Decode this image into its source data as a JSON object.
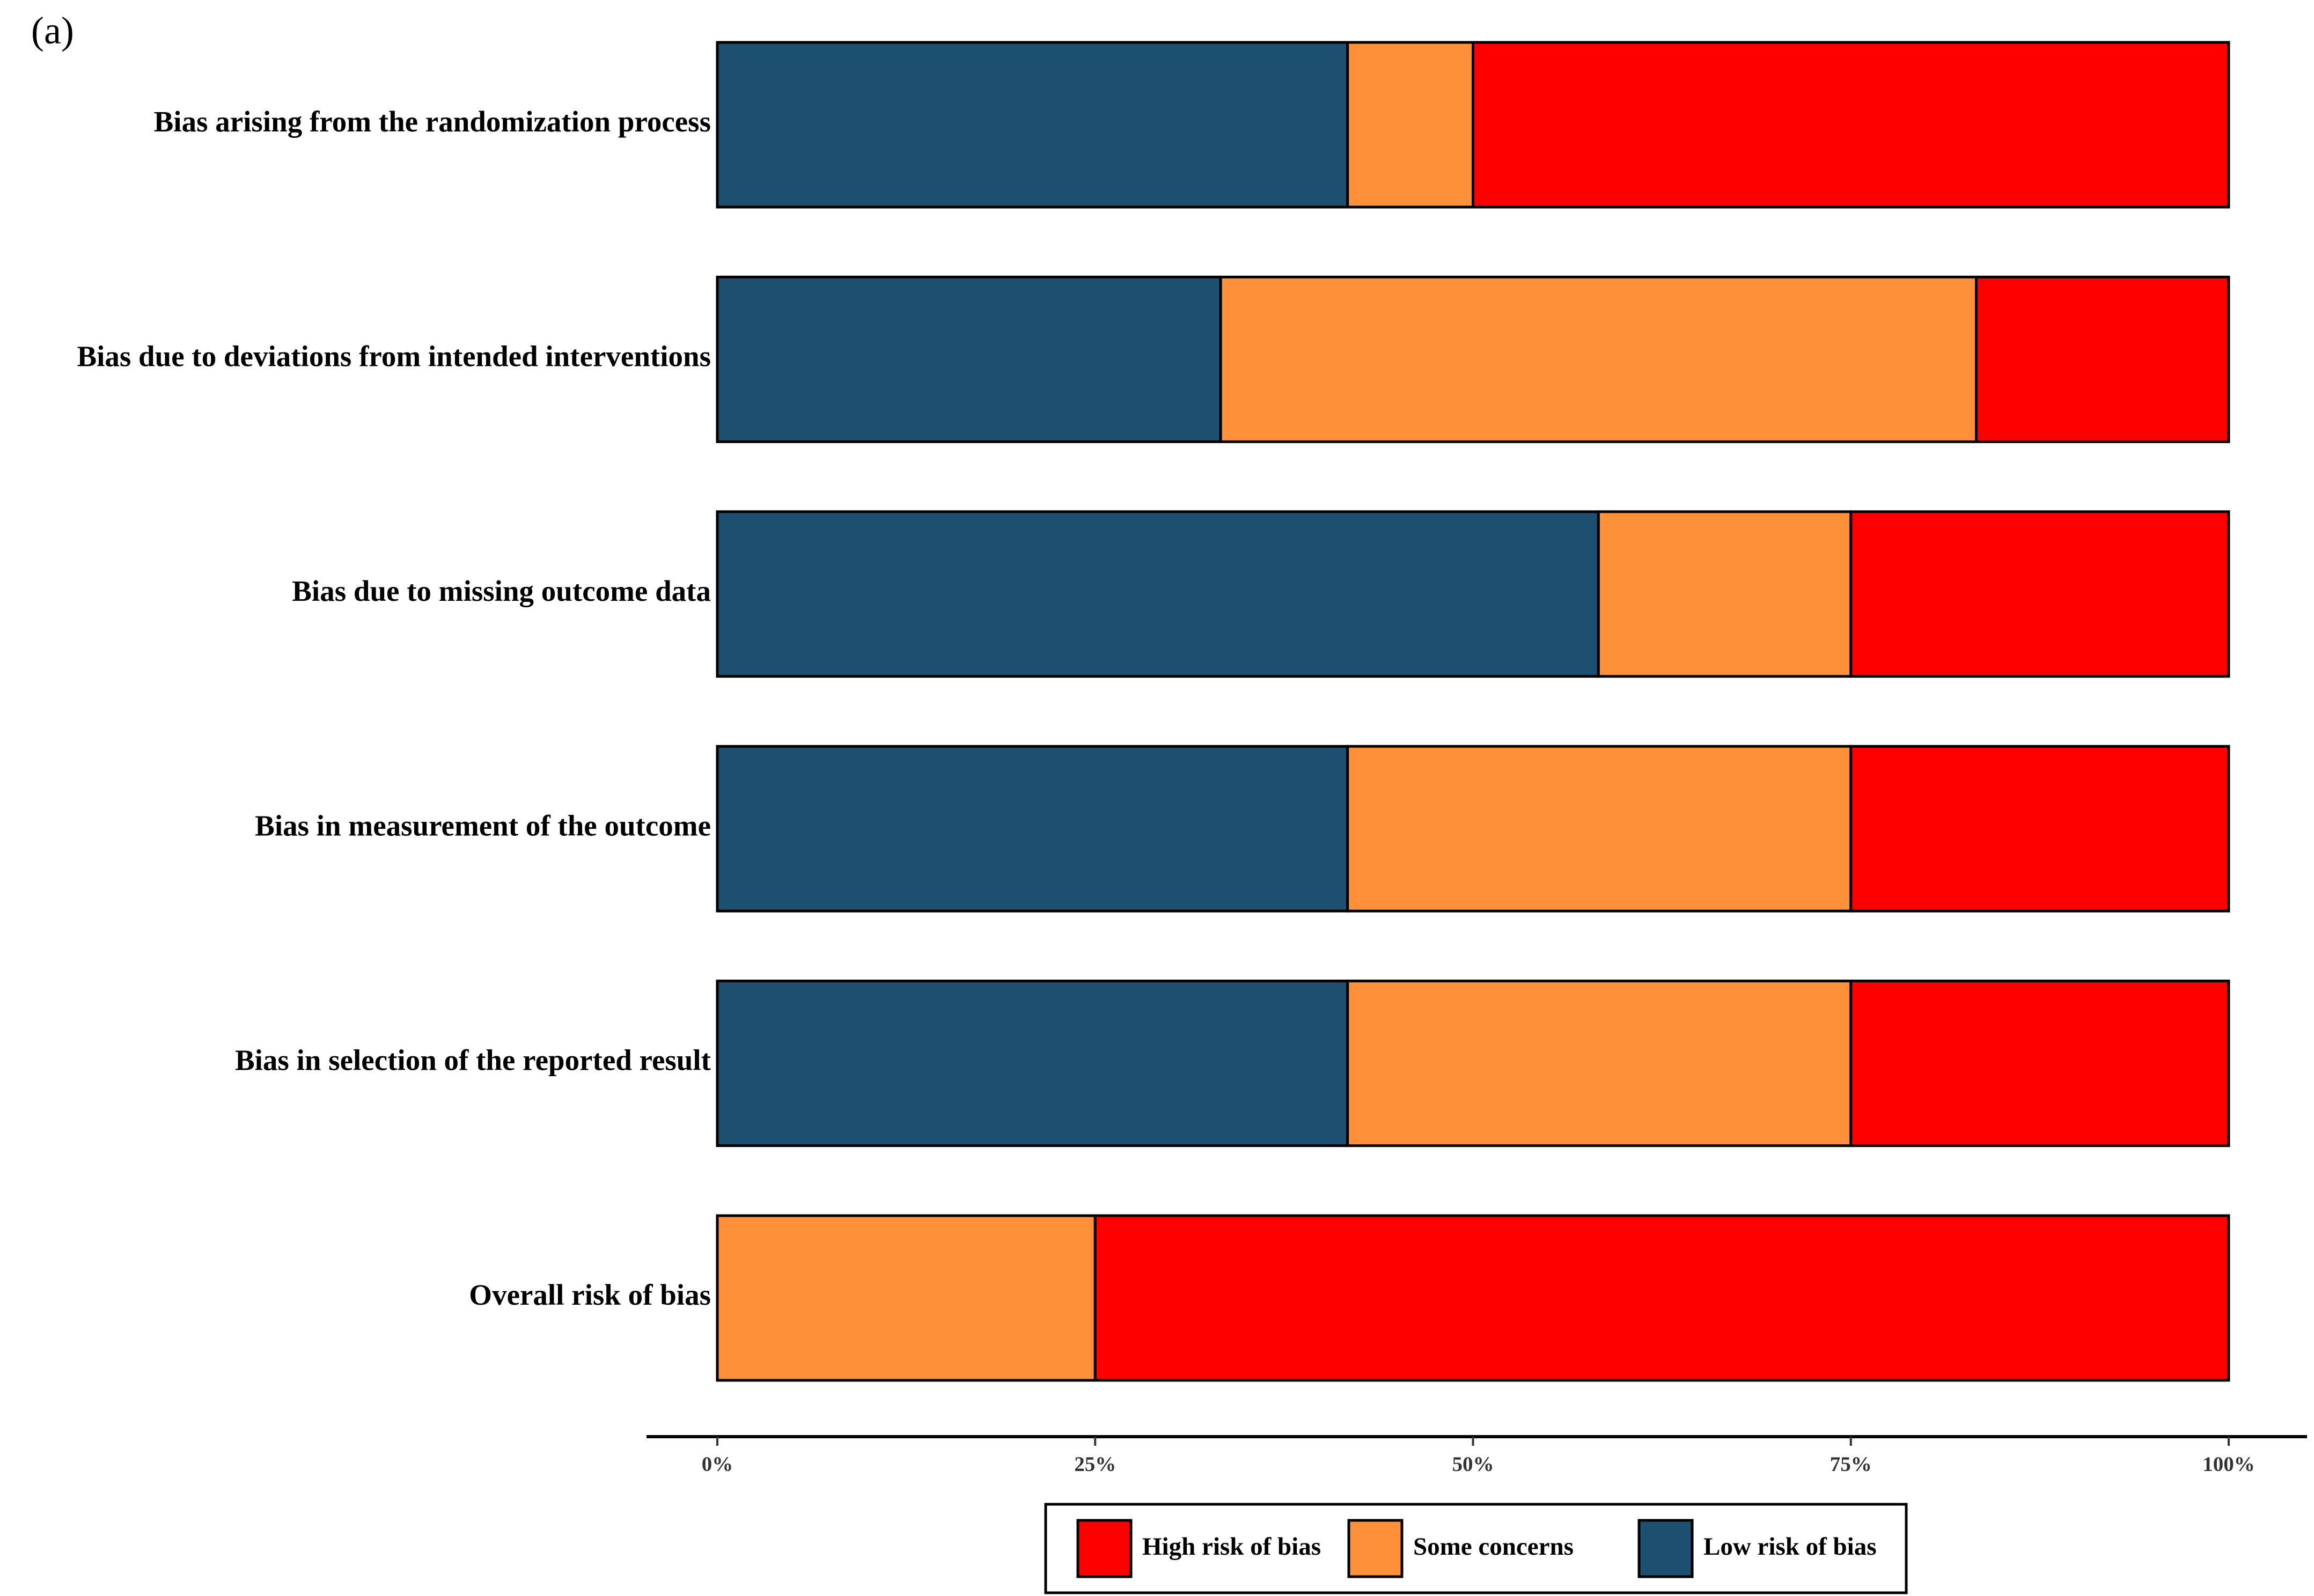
{
  "panel_label": "(a)",
  "chart_data": {
    "type": "bar",
    "orientation": "horizontal",
    "stacked": true,
    "title": "",
    "xlabel": "",
    "ylabel": "",
    "xlim": [
      0,
      100
    ],
    "x_ticks": [
      0,
      25,
      50,
      75,
      100
    ],
    "x_tick_labels": [
      "0%",
      "25%",
      "50%",
      "75%",
      "100%"
    ],
    "categories": [
      "Bias arising from the randomization process",
      "Bias due to deviations from intended interventions",
      "Bias due to missing outcome data",
      "Bias in measurement of the outcome",
      "Bias in selection of the reported result",
      "Overall risk of bias"
    ],
    "series": [
      {
        "name": "Low risk of bias",
        "color": "#1c4f70",
        "values": [
          41.7,
          33.3,
          58.3,
          41.7,
          41.7,
          0
        ]
      },
      {
        "name": "Some concerns",
        "color": "#fd9039",
        "values": [
          8.3,
          50.0,
          16.7,
          33.3,
          33.3,
          25.0
        ]
      },
      {
        "name": "High risk of bias",
        "color": "#ff0000",
        "values": [
          50.0,
          16.7,
          25.0,
          25.0,
          25.0,
          75.0
        ]
      }
    ],
    "legend": {
      "position": "bottom",
      "order": [
        "High risk of bias",
        "Some concerns",
        "Low risk of bias"
      ]
    }
  }
}
